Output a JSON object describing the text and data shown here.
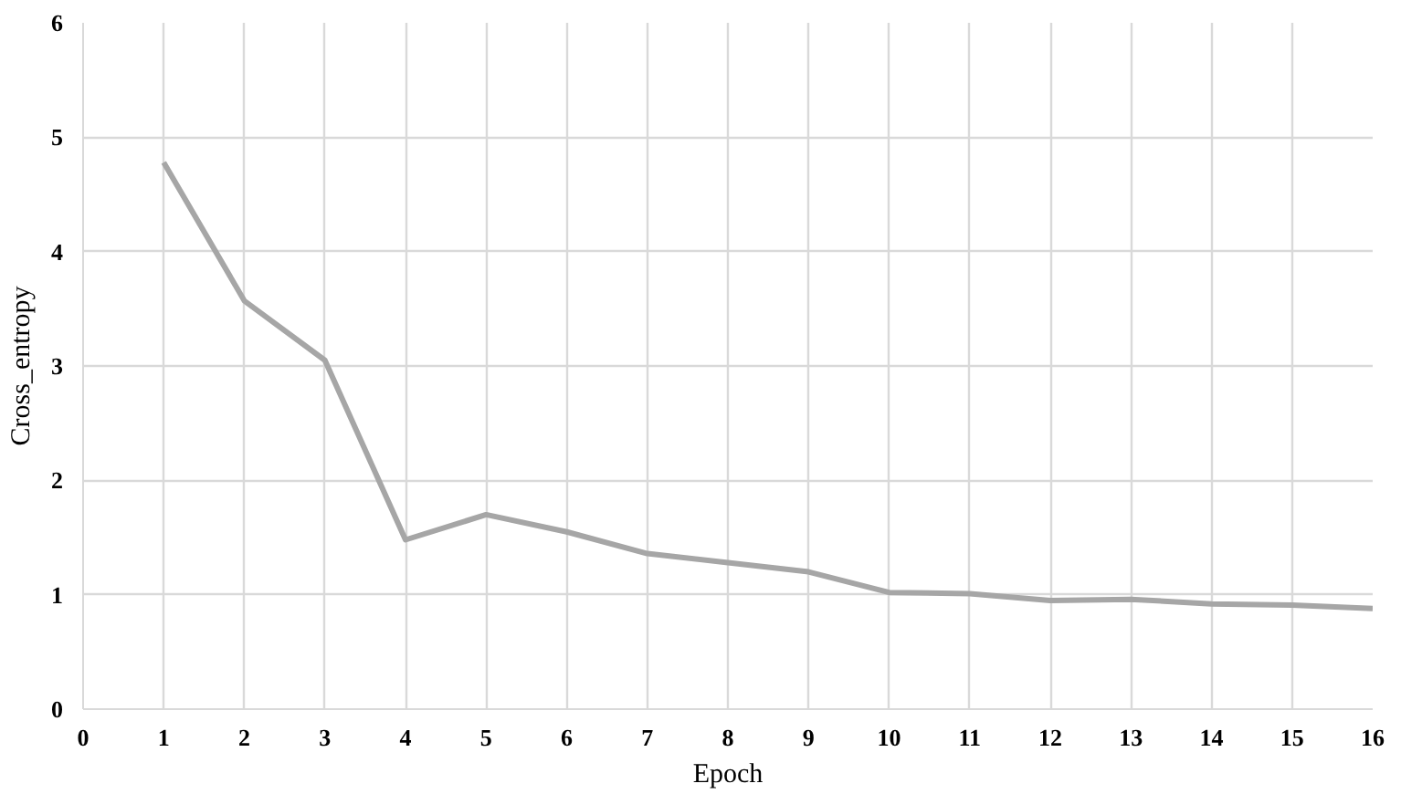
{
  "chart_data": {
    "type": "line",
    "xlabel": "Epoch",
    "ylabel": "Cross_entropy",
    "x": [
      1,
      2,
      3,
      4,
      5,
      6,
      7,
      8,
      9,
      10,
      11,
      12,
      13,
      14,
      15,
      16
    ],
    "series": [
      {
        "color": "#a6a6a6",
        "values": [
          4.78,
          3.57,
          3.05,
          1.48,
          1.7,
          1.55,
          1.36,
          1.28,
          1.2,
          1.02,
          1.01,
          0.95,
          0.96,
          0.92,
          0.91,
          0.88
        ]
      }
    ],
    "xlim": [
      0,
      16
    ],
    "xticks": [
      0,
      1,
      2,
      3,
      4,
      5,
      6,
      7,
      8,
      9,
      10,
      11,
      12,
      13,
      14,
      15,
      16
    ],
    "ylim": [
      0,
      6
    ],
    "yticks": [
      0,
      1,
      2,
      3,
      4,
      5,
      6
    ],
    "grid": true,
    "marker": "none",
    "line_style": "solid"
  }
}
